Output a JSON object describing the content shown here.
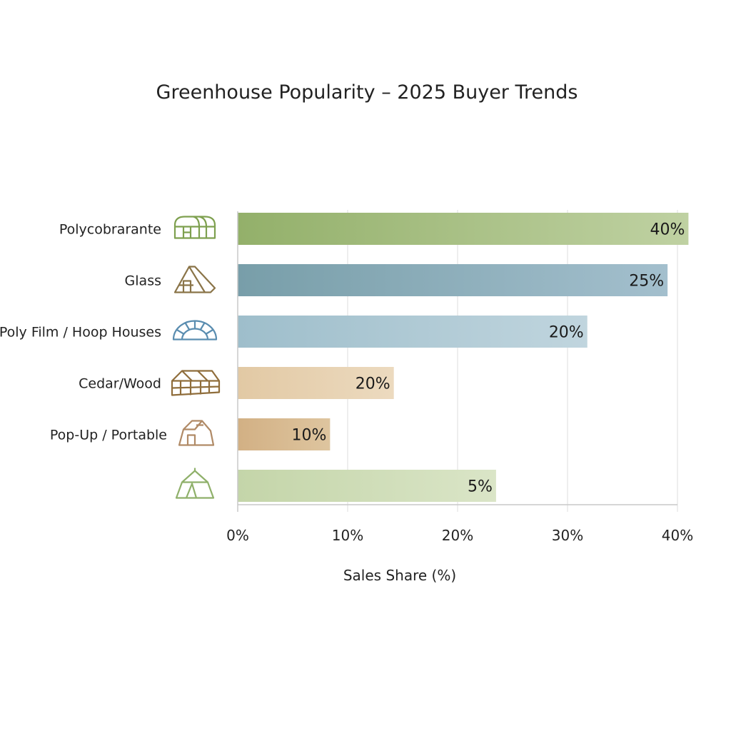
{
  "chart_data": {
    "type": "bar",
    "orientation": "horizontal",
    "title": "Greenhouse Popularity – 2025 Buyer Trends",
    "xlabel": "Sales Share (%)",
    "ylabel": "",
    "categories": [
      "Polycobrarante",
      "Glass",
      "Poly Film / Hoop Houses",
      "Cedar/Wood",
      "Pop-Up / Portable",
      ""
    ],
    "data_labels": [
      "40%",
      "25%",
      "20%",
      "20%",
      "10%",
      "5%"
    ],
    "values": [
      40,
      25,
      20,
      20,
      10,
      5
    ],
    "bar_extent": [
      41.0,
      39.1,
      31.8,
      14.2,
      8.4,
      23.5
    ],
    "icons": [
      "polycarbonate-greenhouse-icon",
      "a-frame-glass-greenhouse-icon",
      "hoop-house-icon",
      "wood-greenhouse-icon",
      "portable-greenhouse-icon",
      "tent-greenhouse-icon"
    ],
    "colors": [
      [
        "#93b06a",
        "#bfd1a2"
      ],
      [
        "#789ea9",
        "#a3bfcd"
      ],
      [
        "#9ebecb",
        "#c0d5de"
      ],
      [
        "#e2c9a4",
        "#ecdabf"
      ],
      [
        "#d2b084",
        "#dec59f"
      ],
      [
        "#c4d5a9",
        "#dae5c7"
      ]
    ],
    "icon_colors": [
      "#7ea04f",
      "#8a7448",
      "#5a8db0",
      "#8f6d3b",
      "#b08a66",
      "#8fb06a"
    ],
    "xlim": [
      0,
      40
    ],
    "xticks": [
      0,
      10,
      20,
      30,
      40
    ],
    "xtick_labels": [
      "0%",
      "10%",
      "20%",
      "30%",
      "40%"
    ],
    "grid": true,
    "legend": "none"
  }
}
